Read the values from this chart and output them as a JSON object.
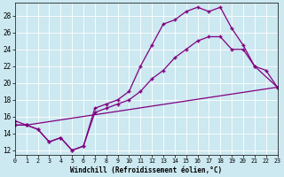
{
  "xlabel": "Windchill (Refroidissement éolien,°C)",
  "bg_color": "#cce8f0",
  "line_color": "#800080",
  "xlim": [
    0,
    23
  ],
  "ylim": [
    11.5,
    29.5
  ],
  "xticks": [
    0,
    1,
    2,
    3,
    4,
    5,
    6,
    7,
    8,
    9,
    10,
    11,
    12,
    13,
    14,
    15,
    16,
    17,
    18,
    19,
    20,
    21,
    22,
    23
  ],
  "yticks": [
    12,
    14,
    16,
    18,
    20,
    22,
    24,
    26,
    28
  ],
  "line1_x": [
    0,
    1,
    2,
    3,
    4,
    5,
    6,
    7,
    8,
    9,
    10,
    11,
    12,
    13,
    14,
    15,
    16,
    17,
    18,
    19,
    20,
    21,
    23
  ],
  "line1_y": [
    15.0,
    15.0,
    14.5,
    13.0,
    13.5,
    12.0,
    12.5,
    17.0,
    17.5,
    18.0,
    19.0,
    22.0,
    24.5,
    27.0,
    27.5,
    28.5,
    29.0,
    28.5,
    29.0,
    26.5,
    24.5,
    22.0,
    19.5
  ],
  "line2_x": [
    0,
    1,
    2,
    3,
    4,
    5,
    6,
    7,
    8,
    9,
    10,
    11,
    12,
    13,
    14,
    15,
    16,
    17,
    18,
    19,
    20,
    21,
    22,
    23
  ],
  "line2_y": [
    15.5,
    15.0,
    14.5,
    13.0,
    13.5,
    12.0,
    12.5,
    16.5,
    17.0,
    17.5,
    18.0,
    19.0,
    20.5,
    21.5,
    23.0,
    24.0,
    25.0,
    25.5,
    25.5,
    24.0,
    24.0,
    22.0,
    21.5,
    19.5
  ],
  "line3_x": [
    0,
    1,
    23
  ],
  "line3_y": [
    15.0,
    15.0,
    19.5
  ]
}
